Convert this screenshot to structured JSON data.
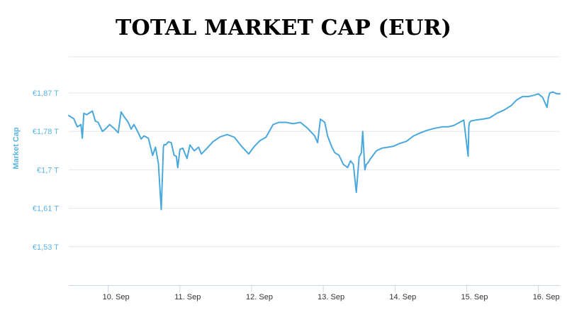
{
  "title": "TOTAL MARKET CAP (EUR)",
  "chart_data": {
    "type": "line",
    "title": "TOTAL MARKET CAP (EUR)",
    "ylabel": "Market Cap",
    "xlabel": "",
    "ylim": [
      1.445,
      1.95
    ],
    "xlim": [
      9.45,
      16.3
    ],
    "grid": true,
    "line_color": "#4aa8dc",
    "y_ticks": [
      {
        "value": 1.53,
        "label": "€1,53 T"
      },
      {
        "value": 1.615,
        "label": "€1,61 T"
      },
      {
        "value": 1.7,
        "label": "€1,7 T"
      },
      {
        "value": 1.785,
        "label": "€1,78 T"
      },
      {
        "value": 1.87,
        "label": "€1,87 T"
      }
    ],
    "x_ticks": [
      {
        "value": 10,
        "label": "10. Sep"
      },
      {
        "value": 11,
        "label": "11. Sep"
      },
      {
        "value": 12,
        "label": "12. Sep"
      },
      {
        "value": 13,
        "label": "13. Sep"
      },
      {
        "value": 14,
        "label": "14. Sep"
      },
      {
        "value": 15,
        "label": "15. Sep"
      },
      {
        "value": 16,
        "label": "16. Sep"
      }
    ],
    "series": [
      {
        "x": [
          9.45,
          9.52,
          9.57,
          9.62,
          9.64,
          9.66,
          9.7,
          9.78,
          9.82,
          9.86,
          9.92,
          9.96,
          10.02,
          10.08,
          10.14,
          10.18,
          10.22,
          10.28,
          10.32,
          10.36,
          10.42,
          10.46,
          10.5,
          10.56,
          10.62,
          10.66,
          10.7,
          10.74,
          10.76,
          10.77,
          10.78,
          10.8,
          10.84,
          10.88,
          10.92,
          10.95,
          10.97,
          11.0,
          11.04,
          11.1,
          11.14,
          11.2,
          11.26,
          11.3,
          11.38,
          11.46,
          11.56,
          11.66,
          11.76,
          11.86,
          11.96,
          12.04,
          12.12,
          12.2,
          12.3,
          12.38,
          12.48,
          12.58,
          12.68,
          12.78,
          12.88,
          12.92,
          12.96,
          13.02,
          13.06,
          13.12,
          13.16,
          13.22,
          13.28,
          13.34,
          13.38,
          13.42,
          13.46,
          13.5,
          13.53,
          13.55,
          13.58,
          13.6,
          13.62,
          13.66,
          13.74,
          13.82,
          13.9,
          13.98,
          14.06,
          14.16,
          14.26,
          14.36,
          14.46,
          14.56,
          14.66,
          14.74,
          14.82,
          14.9,
          14.96,
          15.02,
          15.03,
          15.04,
          15.06,
          15.12,
          15.22,
          15.32,
          15.42,
          15.52,
          15.62,
          15.7,
          15.78,
          15.86,
          15.94,
          16.0,
          16.06,
          16.12,
          16.14,
          16.16,
          16.2,
          16.26,
          16.3
        ],
        "y": [
          1.82,
          1.813,
          1.795,
          1.8,
          1.77,
          1.825,
          1.822,
          1.83,
          1.808,
          1.805,
          1.785,
          1.79,
          1.8,
          1.792,
          1.782,
          1.828,
          1.818,
          1.805,
          1.79,
          1.8,
          1.782,
          1.768,
          1.775,
          1.77,
          1.732,
          1.75,
          1.714,
          1.612,
          1.7,
          1.75,
          1.756,
          1.755,
          1.762,
          1.76,
          1.732,
          1.73,
          1.705,
          1.745,
          1.748,
          1.725,
          1.755,
          1.742,
          1.75,
          1.735,
          1.748,
          1.762,
          1.773,
          1.778,
          1.772,
          1.752,
          1.735,
          1.752,
          1.765,
          1.772,
          1.8,
          1.805,
          1.805,
          1.802,
          1.805,
          1.792,
          1.775,
          1.76,
          1.812,
          1.805,
          1.775,
          1.75,
          1.738,
          1.732,
          1.712,
          1.705,
          1.72,
          1.712,
          1.65,
          1.728,
          1.737,
          1.785,
          1.7,
          1.712,
          1.715,
          1.725,
          1.742,
          1.748,
          1.75,
          1.752,
          1.758,
          1.763,
          1.775,
          1.782,
          1.788,
          1.792,
          1.795,
          1.795,
          1.798,
          1.805,
          1.81,
          1.73,
          1.795,
          1.805,
          1.808,
          1.81,
          1.812,
          1.815,
          1.825,
          1.832,
          1.842,
          1.855,
          1.862,
          1.862,
          1.865,
          1.868,
          1.86,
          1.838,
          1.86,
          1.87,
          1.872,
          1.868,
          1.868
        ]
      }
    ]
  }
}
